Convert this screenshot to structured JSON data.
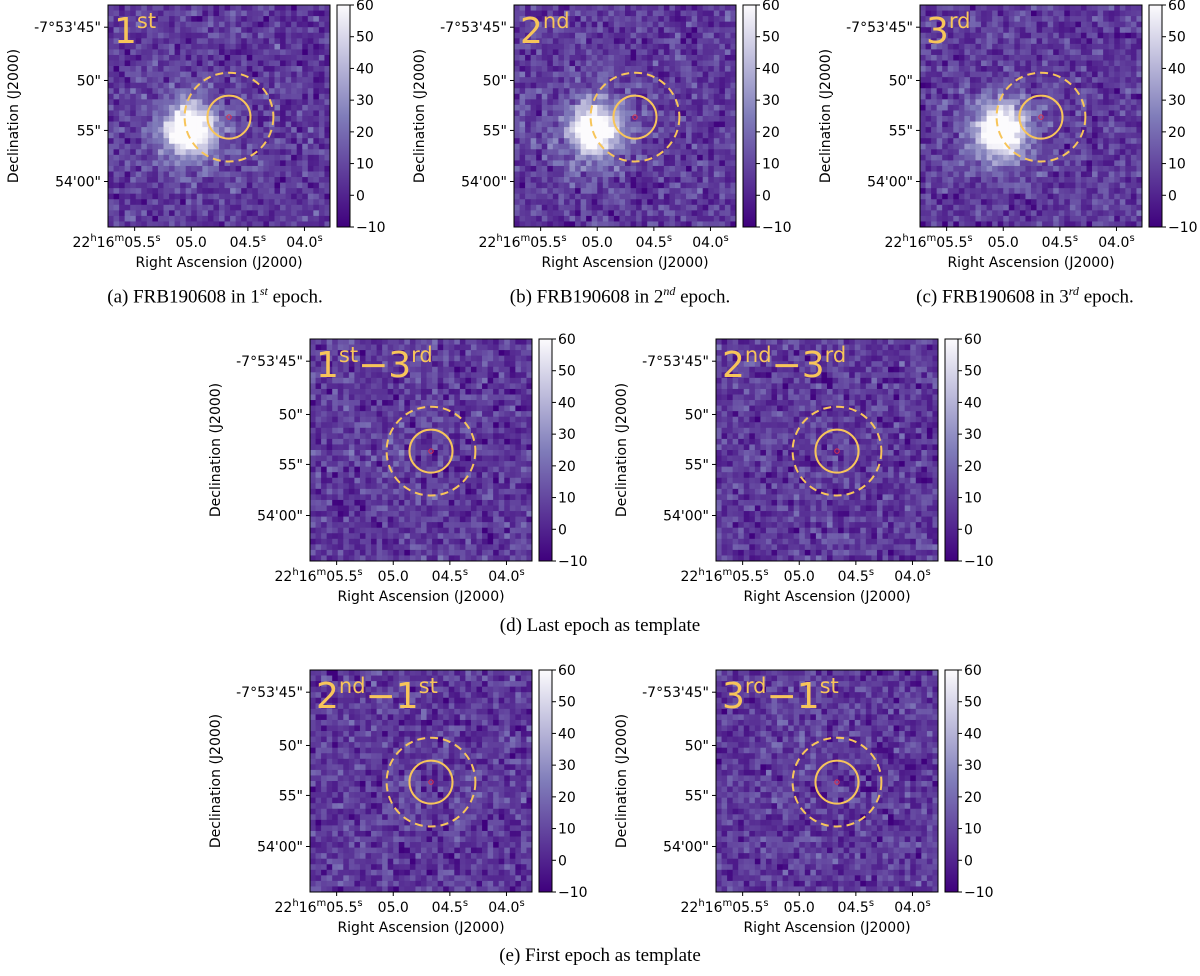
{
  "figure": {
    "panels": [
      {
        "id": "a",
        "epoch_main": "1",
        "epoch_sup": "st",
        "epoch_main2": "",
        "epoch_sup2": "",
        "source": "strong"
      },
      {
        "id": "b",
        "epoch_main": "2",
        "epoch_sup": "nd",
        "epoch_main2": "",
        "epoch_sup2": "",
        "source": "strong"
      },
      {
        "id": "c",
        "epoch_main": "3",
        "epoch_sup": "rd",
        "epoch_main2": "",
        "epoch_sup2": "",
        "source": "strong"
      },
      {
        "id": "d1",
        "epoch_main": "1",
        "epoch_sup": "st",
        "epoch_main2": "3",
        "epoch_sup2": "rd",
        "source": "faint"
      },
      {
        "id": "d2",
        "epoch_main": "2",
        "epoch_sup": "nd",
        "epoch_main2": "3",
        "epoch_sup2": "rd",
        "source": "none"
      },
      {
        "id": "e1",
        "epoch_main": "2",
        "epoch_sup": "nd",
        "epoch_main2": "1",
        "epoch_sup2": "st",
        "source": "faint"
      },
      {
        "id": "e2",
        "epoch_main": "3",
        "epoch_sup": "rd",
        "epoch_main2": "1",
        "epoch_sup2": "st",
        "source": "none"
      }
    ],
    "minus": "−",
    "axes": {
      "xlabel": "Right Ascension (J2000)",
      "ylabel": "Declination (J2000)",
      "x_ticks": [
        {
          "pre": "22",
          "h": "h",
          "mid": "16",
          "m": "m",
          "sec": "05.5",
          "s": "s"
        },
        {
          "pre": "",
          "h": "",
          "mid": "",
          "m": "",
          "sec": "05.0",
          "s": ""
        },
        {
          "pre": "",
          "h": "",
          "mid": "",
          "m": "",
          "sec": "04.5",
          "s": "s"
        },
        {
          "pre": "",
          "h": "",
          "mid": "",
          "m": "",
          "sec": "04.0",
          "s": "s"
        }
      ],
      "y_ticks": [
        "-7°53'45\"",
        "50\"",
        "55\"",
        "54'00\""
      ],
      "colorbar_ticks": [
        "60",
        "50",
        "40",
        "30",
        "20",
        "10",
        "0",
        "−10"
      ],
      "colorbar_range": [
        -10,
        60
      ]
    },
    "captions": {
      "a": {
        "pre": "(a)  FRB190608 in 1",
        "sup": "st",
        "post": " epoch."
      },
      "b": {
        "pre": "(b)  FRB190608 in 2",
        "sup": "nd",
        "post": " epoch."
      },
      "c": {
        "pre": "(c)  FRB190608 in 3",
        "sup": "rd",
        "post": " epoch."
      },
      "d": {
        "pre": "(d)  Last epoch as template",
        "sup": "",
        "post": ""
      },
      "e": {
        "pre": "(e)  First epoch as template",
        "sup": "",
        "post": ""
      }
    },
    "colors": {
      "cmap_low": "#3f007d",
      "cmap_mid": "#807dba",
      "cmap_high": "#fcfbfd",
      "circle": "#f7c55a",
      "marker": "#e0304a"
    }
  }
}
